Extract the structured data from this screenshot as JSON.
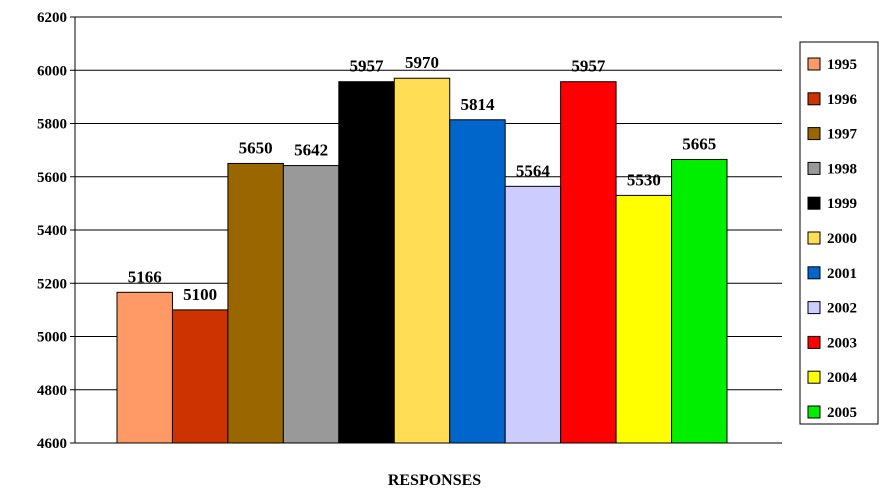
{
  "chart_data": {
    "type": "bar",
    "xlabel": "RESPONSES",
    "ylabel": "",
    "ylim": [
      4600,
      6200
    ],
    "yticks": [
      4600,
      4800,
      5000,
      5200,
      5400,
      5600,
      5800,
      6000,
      6200
    ],
    "grid": true,
    "legend_position": "right",
    "series": [
      {
        "name": "1995",
        "value": 5166,
        "color": "#FF9966"
      },
      {
        "name": "1996",
        "value": 5100,
        "color": "#CC3300"
      },
      {
        "name": "1997",
        "value": 5650,
        "color": "#996600"
      },
      {
        "name": "1998",
        "value": 5642,
        "color": "#999999"
      },
      {
        "name": "1999",
        "value": 5957,
        "color": "#000000"
      },
      {
        "name": "2000",
        "value": 5970,
        "color": "#FFDD55"
      },
      {
        "name": "2001",
        "value": 5814,
        "color": "#0066CC"
      },
      {
        "name": "2002",
        "value": 5564,
        "color": "#CCCCFF"
      },
      {
        "name": "2003",
        "value": 5957,
        "color": "#FF0000"
      },
      {
        "name": "2004",
        "value": 5530,
        "color": "#FFFF00"
      },
      {
        "name": "2005",
        "value": 5665,
        "color": "#00EE00"
      }
    ]
  }
}
